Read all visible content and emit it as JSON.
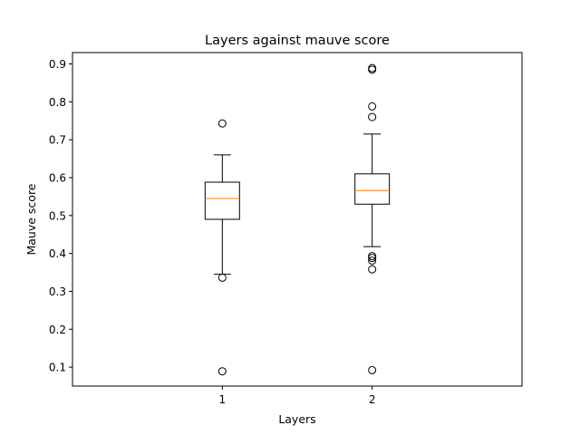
{
  "chart_data": {
    "type": "box",
    "title": "Layers against mauve score",
    "xlabel": "Layers",
    "ylabel": "Mauve score",
    "categories": [
      "1",
      "2"
    ],
    "ylim": [
      0.05,
      0.93
    ],
    "yticks": [
      0.1,
      0.2,
      0.3,
      0.4,
      0.5,
      0.6,
      0.7,
      0.8,
      0.9
    ],
    "ytick_labels": [
      "0.1",
      "0.2",
      "0.3",
      "0.4",
      "0.5",
      "0.6",
      "0.7",
      "0.8",
      "0.9"
    ],
    "grid": false,
    "boxes": [
      {
        "category": "1",
        "whisker_low": 0.345,
        "q1": 0.49,
        "median": 0.545,
        "q3": 0.588,
        "whisker_high": 0.66,
        "outliers": [
          0.743,
          0.336,
          0.089
        ]
      },
      {
        "category": "2",
        "whisker_low": 0.418,
        "q1": 0.53,
        "median": 0.566,
        "q3": 0.61,
        "whisker_high": 0.715,
        "outliers": [
          0.889,
          0.885,
          0.788,
          0.76,
          0.393,
          0.388,
          0.381,
          0.358,
          0.092
        ]
      }
    ],
    "colors": {
      "median": "#ff7f0e",
      "box": "#000000",
      "axes": "#000000"
    }
  }
}
